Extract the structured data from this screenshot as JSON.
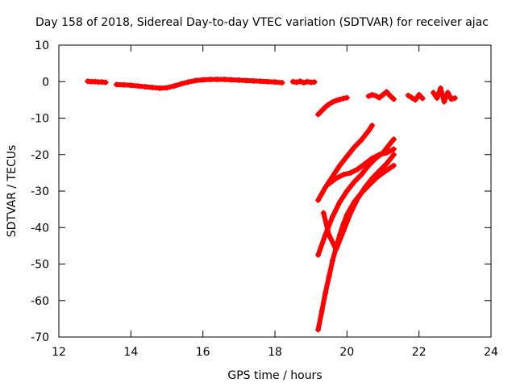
{
  "chart_data": {
    "type": "scatter",
    "title": "Day 158 of 2018, Sidereal Day-to-day VTEC variation (SDTVAR) for receiver ajac",
    "xlabel": "GPS time / hours",
    "ylabel": "SDTVAR / TECUs",
    "xlim": [
      12,
      24
    ],
    "ylim": [
      -70,
      10
    ],
    "x_ticks": [
      12,
      14,
      16,
      18,
      20,
      22,
      24
    ],
    "y_ticks": [
      10,
      0,
      -10,
      -20,
      -30,
      -40,
      -50,
      -60,
      -70
    ],
    "grid": false,
    "legend": "none",
    "marker": "plus",
    "series_color": "#ff0000",
    "series": [
      {
        "x": [
          12.8,
          12.9,
          13.0,
          13.1,
          13.2,
          13.3
        ],
        "y": [
          0.1,
          0.0,
          0.0,
          -0.1,
          -0.1,
          -0.2
        ]
      },
      {
        "x": [
          13.6,
          13.8,
          14.0,
          14.2,
          14.4,
          14.6,
          14.8,
          15.0,
          15.2,
          15.4,
          15.6,
          15.8,
          16.0,
          16.2,
          16.4,
          16.6,
          16.8,
          17.0,
          17.2,
          17.4,
          17.6,
          17.8,
          18.0,
          18.2
        ],
        "y": [
          -0.8,
          -0.9,
          -1.0,
          -1.2,
          -1.4,
          -1.6,
          -1.8,
          -1.7,
          -1.2,
          -0.6,
          -0.1,
          0.3,
          0.5,
          0.6,
          0.6,
          0.6,
          0.5,
          0.4,
          0.3,
          0.2,
          0.1,
          0.0,
          -0.1,
          -0.3
        ]
      },
      {
        "x": [
          18.5,
          18.6,
          18.7,
          18.8,
          18.9,
          19.0,
          19.1
        ],
        "y": [
          0.0,
          -0.2,
          0.1,
          -0.3,
          0.0,
          -0.2,
          -0.1
        ]
      },
      {
        "x": [
          19.2,
          19.3,
          19.4,
          19.5,
          19.6,
          19.7,
          19.8,
          19.9,
          20.0
        ],
        "y": [
          -9.0,
          -8.0,
          -7.0,
          -6.2,
          -5.6,
          -5.2,
          -4.9,
          -4.6,
          -4.4
        ]
      },
      {
        "x": [
          20.6,
          20.7,
          20.8,
          20.9,
          21.0,
          21.1,
          21.2,
          21.3
        ],
        "y": [
          -4.0,
          -3.6,
          -3.9,
          -4.4,
          -3.6,
          -2.8,
          -3.9,
          -4.8
        ]
      },
      {
        "x": [
          21.7,
          21.8,
          21.9,
          22.0,
          22.1
        ],
        "y": [
          -3.8,
          -4.4,
          -5.0,
          -3.6,
          -4.6
        ]
      },
      {
        "x": [
          22.4,
          22.5,
          22.6,
          22.7,
          22.8,
          22.9,
          23.0
        ],
        "y": [
          -3.0,
          -4.5,
          -1.8,
          -5.5,
          -3.0,
          -4.8,
          -4.5
        ]
      },
      {
        "x": [
          19.2,
          19.4,
          19.6,
          19.8,
          20.0,
          20.2,
          20.4,
          20.6,
          20.7
        ],
        "y": [
          -32.5,
          -29.0,
          -26.0,
          -23.0,
          -20.5,
          -18.0,
          -16.0,
          -13.5,
          -12.0
        ]
      },
      {
        "x": [
          19.5,
          19.7,
          19.9,
          20.1,
          20.3,
          20.5,
          20.7,
          20.9,
          21.1,
          21.3
        ],
        "y": [
          -28.0,
          -26.5,
          -25.5,
          -25.0,
          -24.0,
          -22.5,
          -21.0,
          -20.0,
          -19.5,
          -18.5
        ]
      },
      {
        "x": [
          19.2,
          19.4,
          19.6,
          19.8,
          20.0,
          20.2,
          20.4,
          20.6,
          20.8,
          21.0,
          21.2,
          21.3
        ],
        "y": [
          -47.5,
          -42.0,
          -37.0,
          -33.0,
          -30.0,
          -27.5,
          -25.5,
          -23.0,
          -21.0,
          -19.5,
          -17.0,
          -15.8
        ]
      },
      {
        "x": [
          19.35,
          19.5,
          19.7,
          19.9,
          20.1,
          20.3,
          20.5,
          20.7,
          20.9,
          21.1,
          21.3
        ],
        "y": [
          -36.0,
          -42.0,
          -46.0,
          -41.0,
          -36.0,
          -32.0,
          -29.0,
          -26.5,
          -24.5,
          -22.5,
          -20.0
        ]
      },
      {
        "x": [
          19.2,
          19.3,
          19.4,
          19.5,
          19.6,
          19.7,
          19.8,
          19.9,
          20.0,
          20.2,
          20.4,
          20.6,
          20.8,
          21.0,
          21.3
        ],
        "y": [
          -68.0,
          -63.0,
          -58.0,
          -53.5,
          -49.0,
          -45.5,
          -42.0,
          -39.0,
          -36.5,
          -33.0,
          -30.5,
          -28.5,
          -26.5,
          -25.0,
          -23.0
        ]
      }
    ]
  }
}
